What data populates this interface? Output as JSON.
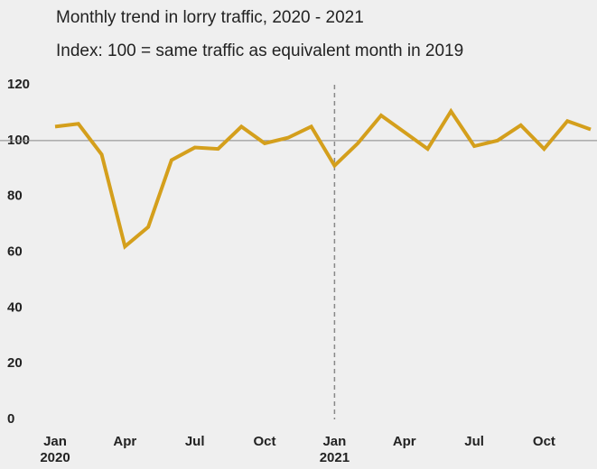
{
  "chart_data": {
    "type": "line",
    "title": "Monthly trend in lorry traffic, 2020 - 2021",
    "subtitle": "Index: 100 = same traffic as equivalent month in 2019",
    "categories": [
      "Jan\n2020",
      null,
      null,
      "Apr",
      null,
      null,
      "Jul",
      null,
      null,
      "Oct",
      null,
      null,
      "Jan\n2021",
      null,
      null,
      "Apr",
      null,
      null,
      "Jul",
      null,
      null,
      "Oct",
      null,
      null
    ],
    "series": [
      {
        "name": "Lorry traffic index",
        "color": "#d49f1c",
        "values": [
          105,
          106,
          95,
          62,
          69,
          93,
          97.5,
          97,
          105,
          99,
          101,
          105,
          91,
          99,
          109,
          103,
          97,
          110.5,
          98,
          100,
          105.5,
          97,
          107,
          104
        ]
      }
    ],
    "ylim": [
      0,
      120
    ],
    "yticks": [
      0,
      20,
      40,
      60,
      80,
      100,
      120
    ],
    "reference_line": 100,
    "grid": false
  }
}
